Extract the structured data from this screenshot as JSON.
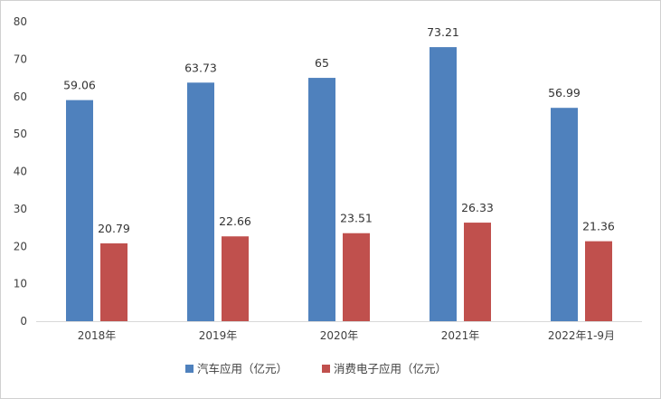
{
  "chart_data": {
    "type": "bar",
    "title": "",
    "xlabel": "",
    "ylabel": "",
    "categories": [
      "2018年",
      "2019年",
      "2020年",
      "2021年",
      "2022年1-9月"
    ],
    "series": [
      {
        "name": "汽车应用（亿元）",
        "color": "#4F81BD",
        "values": [
          59.06,
          63.73,
          65,
          73.21,
          56.99
        ],
        "labels": [
          "59.06",
          "63.73",
          "65",
          "73.21",
          "56.99"
        ]
      },
      {
        "name": "消费电子应用（亿元）",
        "color": "#C0504D",
        "values": [
          20.79,
          22.66,
          23.51,
          26.33,
          21.36
        ],
        "labels": [
          "20.79",
          "22.66",
          "23.51",
          "26.33",
          "21.36"
        ]
      }
    ],
    "ylim": [
      0,
      80
    ],
    "yticks": [
      "0",
      "10",
      "20",
      "30",
      "40",
      "50",
      "60",
      "70",
      "80"
    ],
    "grid": false,
    "legend_position": "bottom"
  }
}
